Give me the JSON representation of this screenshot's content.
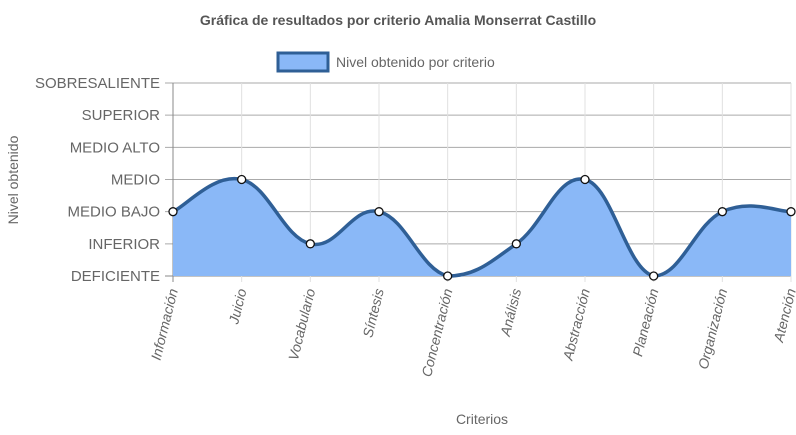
{
  "chart_data": {
    "type": "area",
    "title": "Gráfica de resultados por criterio Amalia Monserrat Castillo",
    "xlabel": "Criterios",
    "ylabel": "Nivel obtenido",
    "categories": [
      "Información",
      "Juicio",
      "Vocabulario",
      "Síntesis",
      "Concentración",
      "Análisis",
      "Abstracción",
      "Planeación",
      "Organización",
      "Atención"
    ],
    "y_levels": [
      "DEFICIENTE",
      "INFERIOR",
      "MEDIO BAJO",
      "MEDIO",
      "MEDIO ALTO",
      "SUPERIOR",
      "SOBRESALIENTE"
    ],
    "series": [
      {
        "name": "Nivel obtenido por criterio",
        "values": [
          "MEDIO BAJO",
          "MEDIO",
          "INFERIOR",
          "MEDIO BAJO",
          "DEFICIENTE",
          "INFERIOR",
          "MEDIO",
          "DEFICIENTE",
          "MEDIO BAJO",
          "MEDIO BAJO"
        ]
      }
    ],
    "legend_position": "top",
    "grid": true,
    "colors": {
      "fill": "#8ab8f7",
      "line": "#2f5f96",
      "legend_fill": "#8ab8f7",
      "legend_border": "#2f5f96",
      "grid": "#d9d9d9",
      "axis": "#666666"
    }
  }
}
